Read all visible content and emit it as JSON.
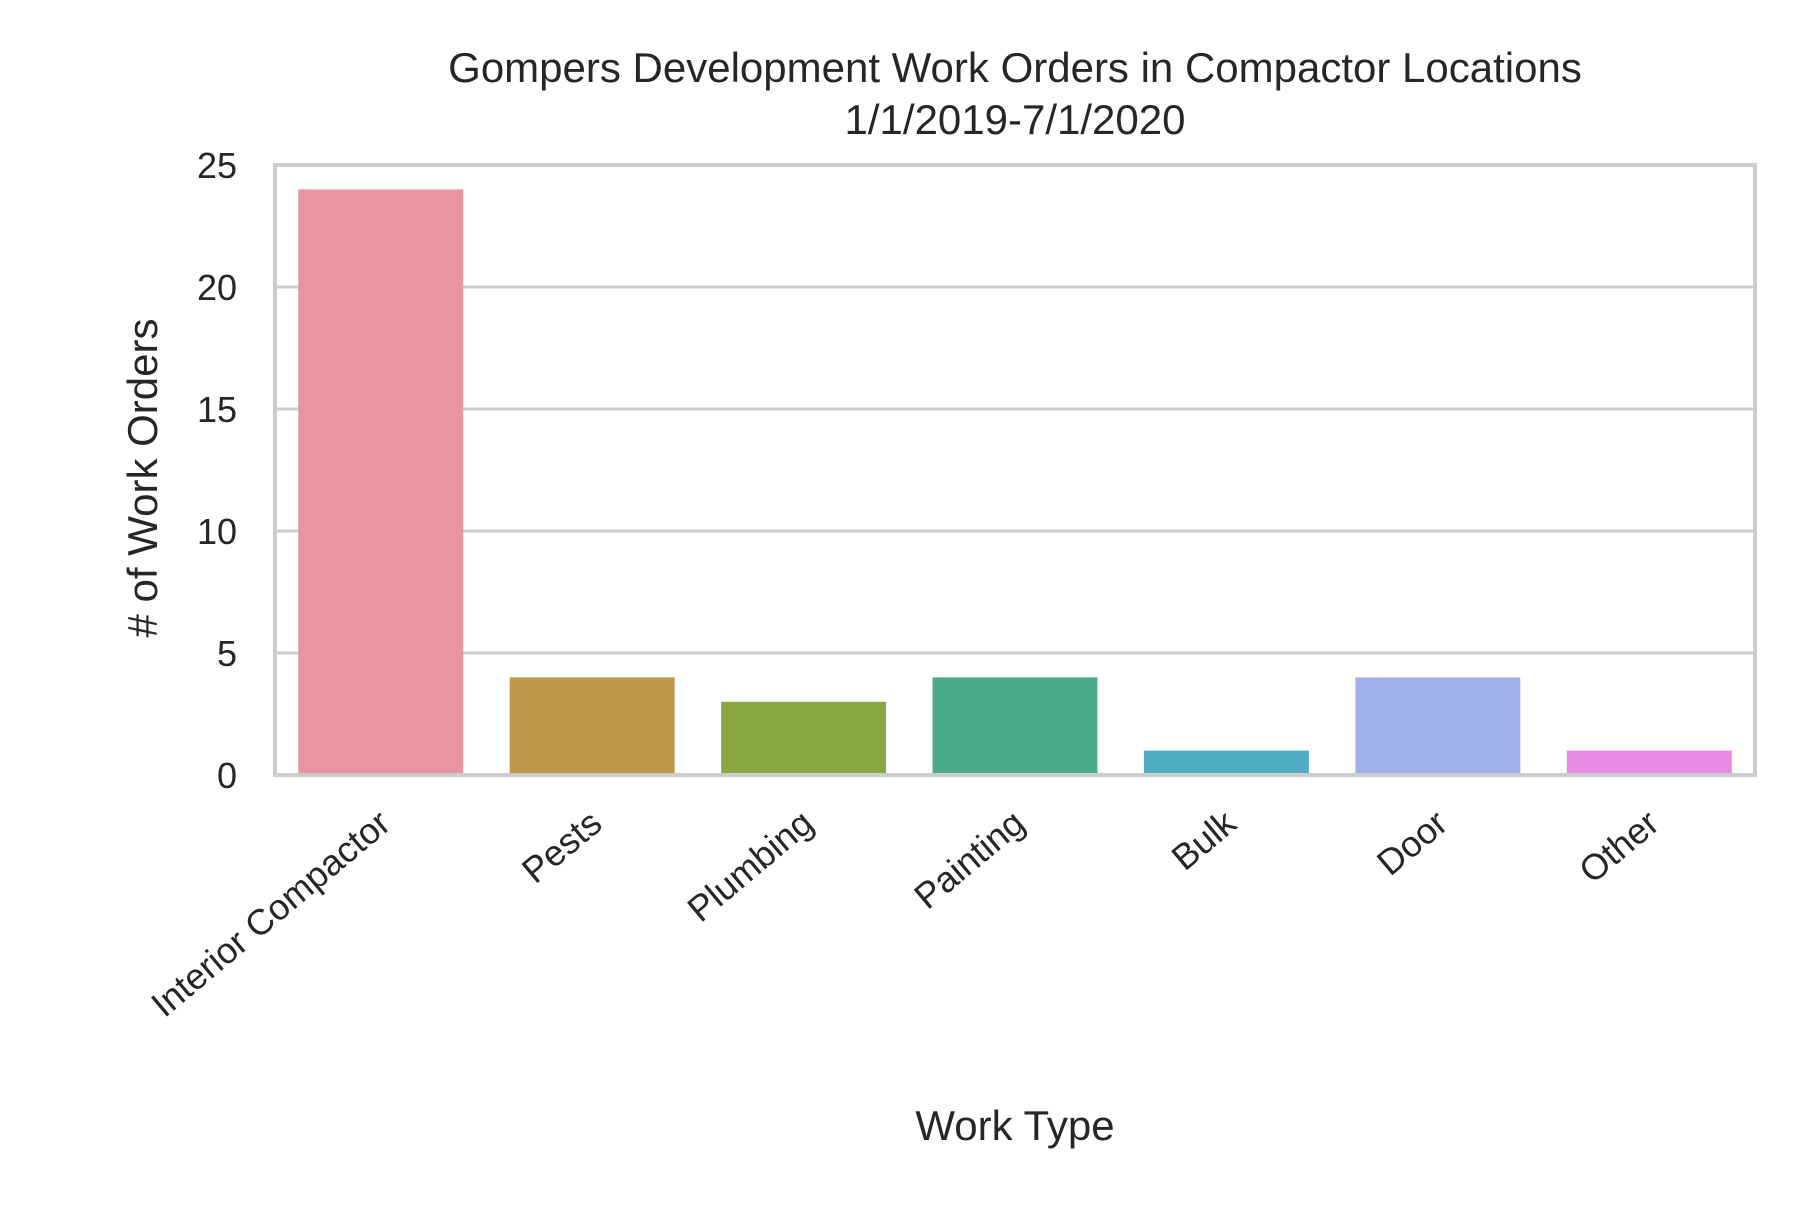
{
  "chart_data": {
    "type": "bar",
    "title": "Gompers Development Work Orders in Compactor Locations",
    "subtitle": "1/1/2019-7/1/2020",
    "xlabel": "Work Type",
    "ylabel": "# of Work Orders",
    "categories": [
      "Interior Compactor",
      "Pests",
      "Plumbing",
      "Painting",
      "Bulk",
      "Door",
      "Other"
    ],
    "values": [
      24,
      4,
      3,
      4,
      1,
      4,
      1
    ],
    "colors": [
      "#e994a2",
      "#c0974a",
      "#89a744",
      "#4aaa8a",
      "#4faec4",
      "#a0aee9",
      "#e68ae4"
    ],
    "ylim": [
      0,
      25
    ],
    "yticks": [
      0,
      5,
      10,
      15,
      20,
      25
    ],
    "ytick_labels": [
      "0",
      "5",
      "10",
      "15",
      "20",
      "25"
    ],
    "grid": "y",
    "legend": "none",
    "style": {
      "grid_color": "#cccccc",
      "frame_color": "#cccccc",
      "text_color": "#262626"
    }
  }
}
